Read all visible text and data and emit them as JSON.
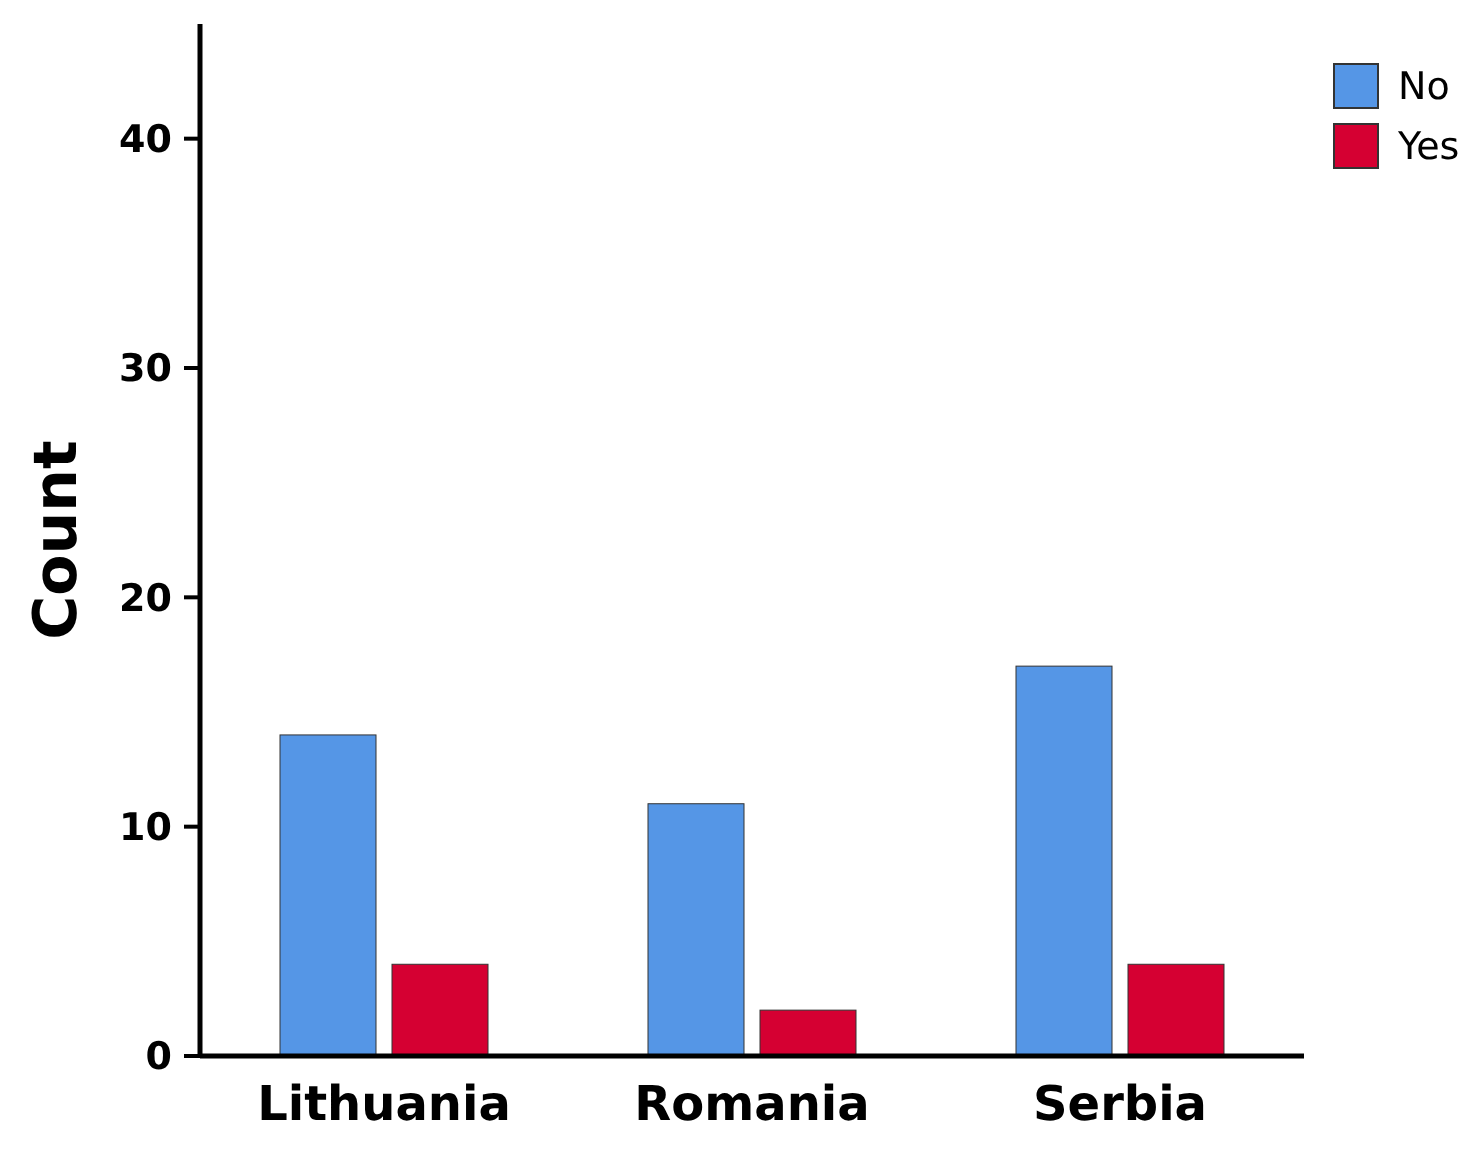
{
  "chart_data": {
    "type": "bar",
    "ylabel": "Count",
    "categories": [
      "Lithuania",
      "Romania",
      "Serbia"
    ],
    "series": [
      {
        "name": "No",
        "color": "#5596e6",
        "values": [
          14,
          11,
          17
        ]
      },
      {
        "name": "Yes",
        "color": "#d50032",
        "values": [
          4,
          2,
          4
        ]
      }
    ],
    "ylim": [
      0,
      45
    ],
    "yticks": [
      0,
      10,
      20,
      30,
      40
    ],
    "grid": false,
    "legend": "top right"
  }
}
